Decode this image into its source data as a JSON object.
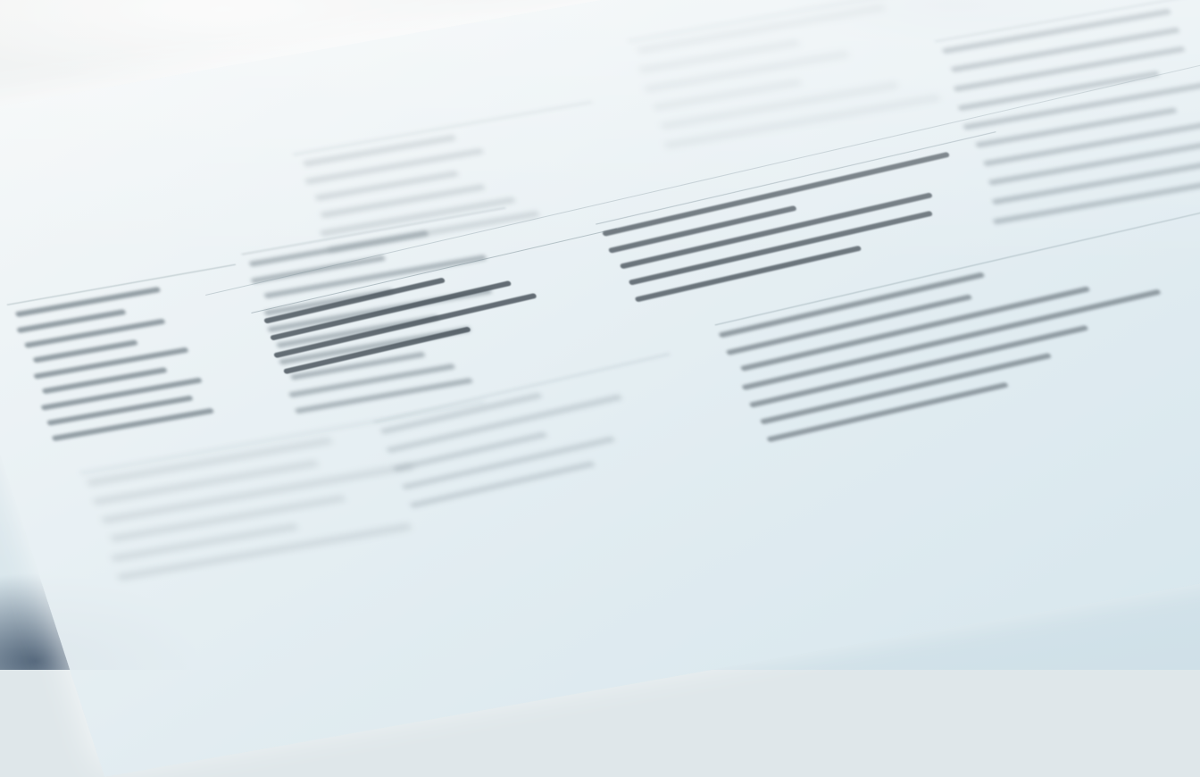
{
  "scene": {
    "subject": "printed-documents",
    "focus": "blurred-shallow-depth-of-field",
    "colors": {
      "background": "#dfe7ea",
      "paper": "#eef3f5",
      "text_ink": "#4c565e",
      "shadow_corner": "#2a3c55"
    }
  }
}
